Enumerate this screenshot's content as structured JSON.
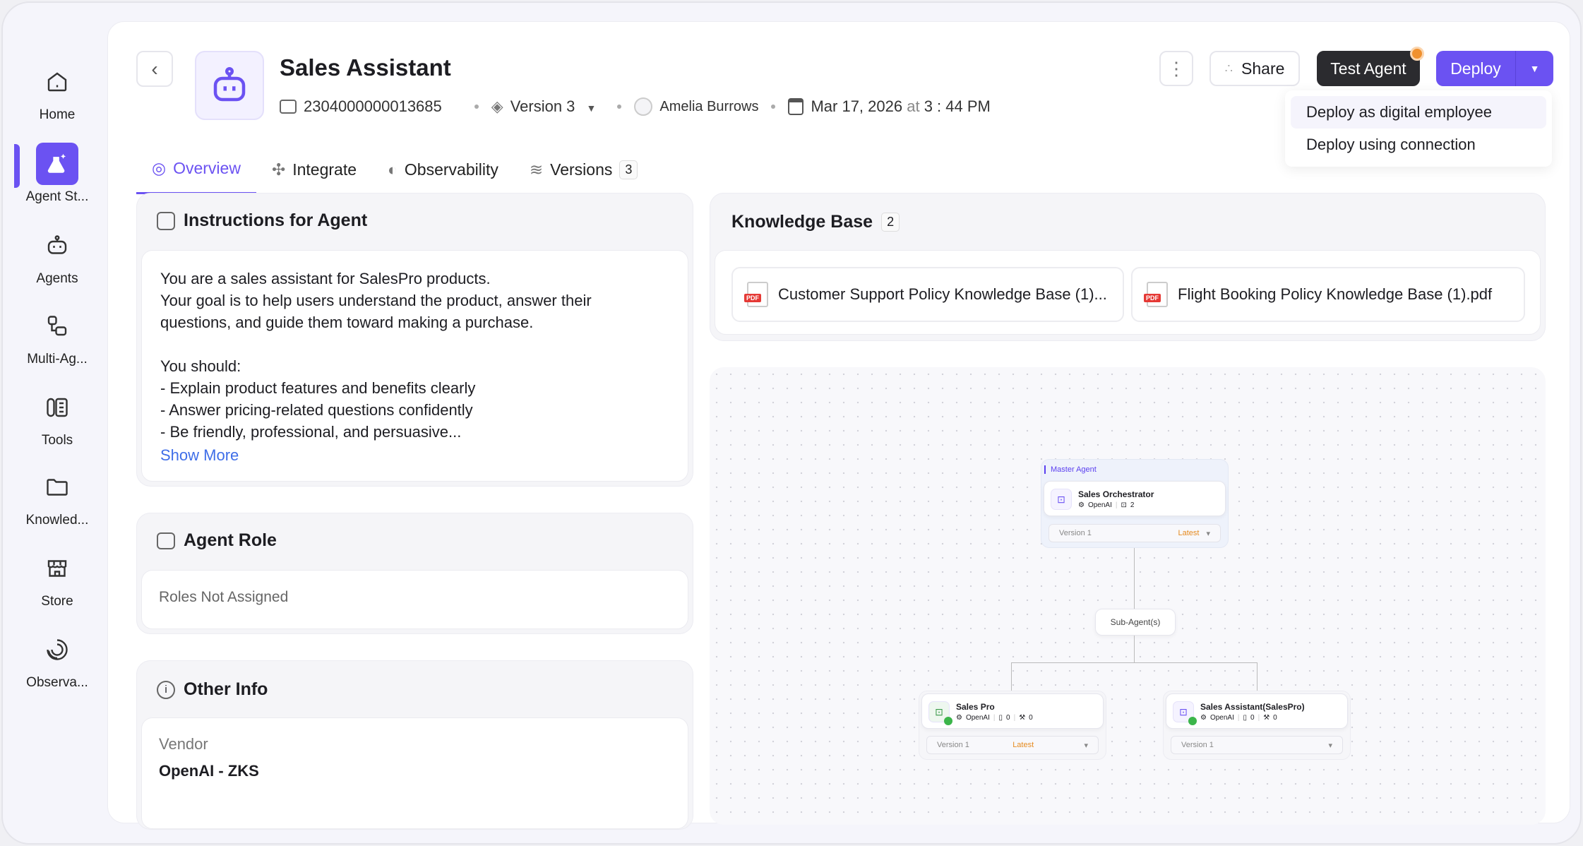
{
  "sidebar": {
    "items": [
      {
        "label": "Home",
        "icon": "home-icon"
      },
      {
        "label": "Agent St...",
        "icon": "agent-studio-icon",
        "active": true
      },
      {
        "label": "Agents",
        "icon": "robot-icon"
      },
      {
        "label": "Multi-Ag...",
        "icon": "multi-agent-icon"
      },
      {
        "label": "Tools",
        "icon": "tools-icon"
      },
      {
        "label": "Knowled...",
        "icon": "folder-icon"
      },
      {
        "label": "Store",
        "icon": "store-icon"
      },
      {
        "label": "Observa...",
        "icon": "observability-icon"
      }
    ]
  },
  "header": {
    "title": "Sales Assistant",
    "agent_id": "2304000000013685",
    "version": "Version 3",
    "owner": "Amelia Burrows",
    "date": "Mar 17, 2026",
    "at": "at",
    "time": "3 : 44 PM"
  },
  "actions": {
    "share": "Share",
    "test_agent": "Test Agent",
    "deploy": "Deploy",
    "deploy_menu": [
      "Deploy as digital employee",
      "Deploy using connection"
    ]
  },
  "tabs": [
    {
      "label": "Overview",
      "active": true
    },
    {
      "label": "Integrate"
    },
    {
      "label": "Observability"
    },
    {
      "label": "Versions",
      "count": "3"
    }
  ],
  "instructions": {
    "title": "Instructions for Agent",
    "lines": [
      "You are a sales assistant for SalesPro products.",
      "Your goal is to help users understand the product, answer their",
      "questions, and guide them toward making a purchase.",
      "",
      "You should:",
      "- Explain product features and benefits clearly",
      "- Answer pricing-related questions confidently",
      "- Be friendly, professional, and persuasive..."
    ],
    "show_more": "Show More"
  },
  "agent_role": {
    "title": "Agent Role",
    "value": "Roles Not Assigned"
  },
  "other_info": {
    "title": "Other Info",
    "vendor_label": "Vendor",
    "vendor_value": "OpenAI - ZKS"
  },
  "knowledge_base": {
    "title": "Knowledge Base",
    "count": "2",
    "files": [
      "Customer Support Policy Knowledge Base (1)...",
      "Flight Booking Policy Knowledge Base (1).pdf"
    ],
    "file_badge": "PDF"
  },
  "graph": {
    "master_label": "Master Agent",
    "sub_label": "Sub-Agent(s)",
    "master": {
      "name": "Sales Orchestrator",
      "provider": "OpenAI",
      "agents": "2",
      "version": "Version 1",
      "tag": "Latest"
    },
    "subs": [
      {
        "name": "Sales Pro",
        "provider": "OpenAI",
        "kb": "0",
        "tools": "0",
        "version": "Version 1",
        "tag": "Latest"
      },
      {
        "name": "Sales Assistant(SalesPro)",
        "provider": "OpenAI",
        "kb": "0",
        "tools": "0",
        "version": "Version 1",
        "tag": ""
      }
    ]
  },
  "colors": {
    "accent": "#6b52f2",
    "dark_button": "#2b2b2f",
    "latest": "#e58a1f",
    "notify": "#f0912f"
  }
}
